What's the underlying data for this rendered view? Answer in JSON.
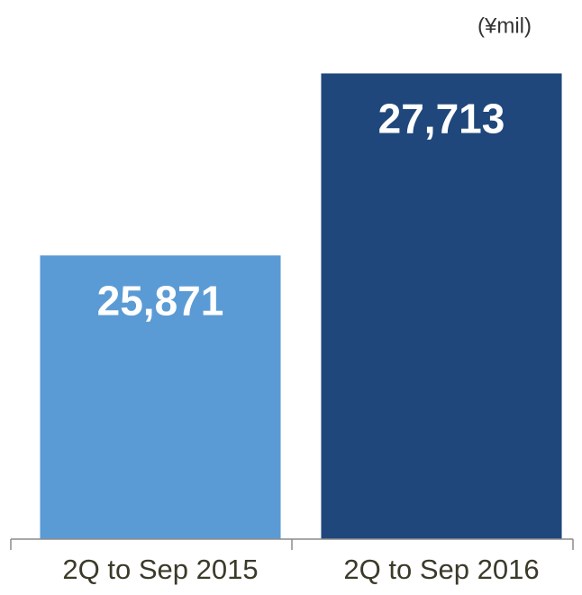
{
  "chart_data": {
    "type": "bar",
    "unit": "(¥mil)",
    "categories": [
      "2Q to Sep 2015",
      "2Q to Sep 2016"
    ],
    "values": [
      25871,
      27713
    ],
    "value_labels": [
      "25,871",
      "27,713"
    ],
    "colors": [
      "#5b9bd5",
      "#1f477b"
    ],
    "ylim": [
      23000,
      28000
    ],
    "grid": false
  }
}
